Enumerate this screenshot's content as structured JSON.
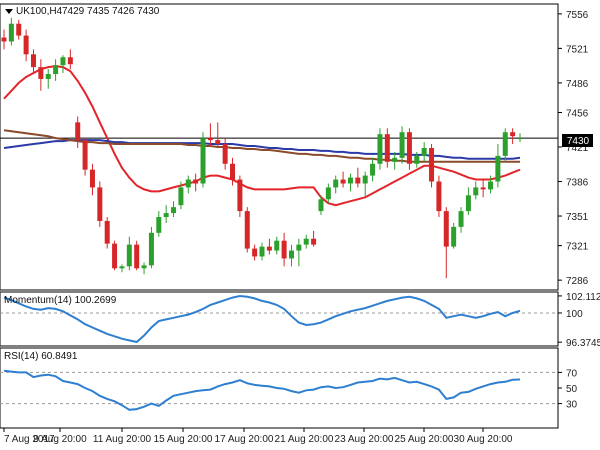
{
  "colors": {
    "bull": "#2ca02c",
    "bear": "#d62728",
    "sma_fast": "#e4242b",
    "sma_mid": "#2c3aa8",
    "sma_slow": "#8b4a2a",
    "indicator_line": "#2f7fd0",
    "grid": "#9a9a9a",
    "axis": "#000000",
    "price_tag_bg": "#000000",
    "price_tag_text": "#ffffff"
  },
  "chart_data": [
    {
      "type": "candlestick",
      "title": "UK100,H4",
      "ohlc_label": "7429 7435 7426 7430",
      "last_price": "7430",
      "yticks": [
        "7556",
        "7521",
        "7486",
        "7456",
        "7421",
        "7386",
        "7351",
        "7321",
        "7286"
      ],
      "ylim": [
        7276,
        7566
      ],
      "xticks": [
        "7 Aug 2017",
        "9 Aug 20:00",
        "11 Aug 20:00",
        "15 Aug 20:00",
        "17 Aug 20:00",
        "21 Aug 20:00",
        "23 Aug 20:00",
        "25 Aug 20:00",
        "30 Aug 20:00"
      ],
      "grid": false,
      "candles": [
        [
          7532,
          7540,
          7520,
          7528
        ],
        [
          7528,
          7552,
          7524,
          7546
        ],
        [
          7546,
          7550,
          7530,
          7534
        ],
        [
          7534,
          7540,
          7508,
          7515
        ],
        [
          7515,
          7520,
          7496,
          7502
        ],
        [
          7502,
          7510,
          7478,
          7490
        ],
        [
          7490,
          7500,
          7480,
          7495
        ],
        [
          7495,
          7510,
          7488,
          7504
        ],
        [
          7504,
          7514,
          7496,
          7512
        ],
        [
          7512,
          7520,
          7500,
          7505
        ],
        [
          7446,
          7452,
          7420,
          7428
        ],
        [
          7428,
          7430,
          7392,
          7398
        ],
        [
          7398,
          7404,
          7372,
          7380
        ],
        [
          7380,
          7386,
          7340,
          7346
        ],
        [
          7346,
          7350,
          7318,
          7323
        ],
        [
          7323,
          7326,
          7296,
          7298
        ],
        [
          7298,
          7302,
          7294,
          7300
        ],
        [
          7300,
          7330,
          7296,
          7322
        ],
        [
          7322,
          7326,
          7296,
          7298
        ],
        [
          7298,
          7304,
          7292,
          7301
        ],
        [
          7301,
          7340,
          7298,
          7334
        ],
        [
          7334,
          7356,
          7330,
          7350
        ],
        [
          7350,
          7362,
          7344,
          7354
        ],
        [
          7354,
          7366,
          7350,
          7360
        ],
        [
          7362,
          7386,
          7358,
          7380
        ],
        [
          7380,
          7392,
          7374,
          7388
        ],
        [
          7388,
          7394,
          7376,
          7384
        ],
        [
          7384,
          7436,
          7380,
          7430
        ],
        [
          7430,
          7445,
          7422,
          7428
        ],
        [
          7428,
          7446,
          7420,
          7424
        ],
        [
          7424,
          7430,
          7398,
          7404
        ],
        [
          7404,
          7410,
          7382,
          7388
        ],
        [
          7388,
          7392,
          7350,
          7356
        ],
        [
          7356,
          7360,
          7314,
          7318
        ],
        [
          7318,
          7322,
          7306,
          7310
        ],
        [
          7310,
          7324,
          7306,
          7320
        ],
        [
          7320,
          7328,
          7312,
          7316
        ],
        [
          7316,
          7330,
          7312,
          7326
        ],
        [
          7326,
          7334,
          7300,
          7308
        ],
        [
          7308,
          7322,
          7300,
          7316
        ],
        [
          7316,
          7328,
          7300,
          7322
        ],
        [
          7322,
          7332,
          7318,
          7328
        ],
        [
          7328,
          7336,
          7320,
          7322
        ],
        [
          7356,
          7372,
          7352,
          7368
        ],
        [
          7368,
          7384,
          7364,
          7380
        ],
        [
          7380,
          7392,
          7374,
          7388
        ],
        [
          7388,
          7396,
          7380,
          7384
        ],
        [
          7384,
          7394,
          7376,
          7390
        ],
        [
          7390,
          7400,
          7380,
          7384
        ],
        [
          7384,
          7396,
          7370,
          7392
        ],
        [
          7392,
          7410,
          7386,
          7404
        ],
        [
          7404,
          7440,
          7398,
          7434
        ],
        [
          7434,
          7440,
          7400,
          7406
        ],
        [
          7406,
          7416,
          7398,
          7410
        ],
        [
          7410,
          7442,
          7404,
          7436
        ],
        [
          7436,
          7440,
          7398,
          7404
        ],
        [
          7404,
          7416,
          7400,
          7412
        ],
        [
          7412,
          7426,
          7406,
          7420
        ],
        [
          7420,
          7424,
          7380,
          7386
        ],
        [
          7386,
          7392,
          7350,
          7356
        ],
        [
          7356,
          7360,
          7288,
          7320
        ],
        [
          7320,
          7344,
          7318,
          7340
        ],
        [
          7340,
          7360,
          7334,
          7356
        ],
        [
          7356,
          7380,
          7352,
          7372
        ],
        [
          7372,
          7386,
          7368,
          7380
        ],
        [
          7380,
          7388,
          7370,
          7378
        ],
        [
          7378,
          7392,
          7374,
          7386
        ],
        [
          7386,
          7424,
          7380,
          7412
        ],
        [
          7412,
          7440,
          7406,
          7436
        ],
        [
          7436,
          7440,
          7424,
          7432
        ],
        [
          7429,
          7435,
          7426,
          7430
        ]
      ],
      "series": [
        {
          "values": [
            7470,
            7478,
            7486,
            7492,
            7496,
            7500,
            7502,
            7503,
            7502,
            7498,
            7488,
            7476,
            7462,
            7446,
            7430,
            7414,
            7400,
            7390,
            7382,
            7378,
            7376,
            7376,
            7378,
            7380,
            7382,
            7384,
            7386,
            7390,
            7392,
            7392,
            7390,
            7388,
            7384,
            7380,
            7378,
            7378,
            7378,
            7378,
            7378,
            7379,
            7380,
            7380,
            7380,
            7370,
            7364,
            7362,
            7364,
            7366,
            7368,
            7370,
            7374,
            7378,
            7382,
            7386,
            7390,
            7394,
            7398,
            7402,
            7402,
            7400,
            7398,
            7396,
            7393,
            7390,
            7388,
            7388,
            7388,
            7390,
            7392,
            7395,
            7398
          ]
        },
        {
          "values": [
            7420,
            7421,
            7422,
            7423,
            7424,
            7425,
            7426,
            7427,
            7427,
            7428,
            7428,
            7428,
            7428,
            7428,
            7427,
            7426,
            7426,
            7425,
            7425,
            7425,
            7425,
            7425,
            7425,
            7425,
            7425,
            7425,
            7425,
            7425,
            7424,
            7424,
            7424,
            7424,
            7423,
            7422,
            7422,
            7421,
            7420,
            7420,
            7419,
            7419,
            7418,
            7418,
            7418,
            7417,
            7417,
            7416,
            7416,
            7415,
            7415,
            7414,
            7414,
            7414,
            7414,
            7414,
            7414,
            7413,
            7413,
            7413,
            7412,
            7412,
            7411,
            7410,
            7410,
            7409,
            7409,
            7409,
            7409,
            7409,
            7409,
            7409,
            7410
          ]
        },
        {
          "values": [
            7438,
            7437,
            7436,
            7435,
            7434,
            7433,
            7432,
            7430,
            7429,
            7428,
            7427,
            7426,
            7426,
            7425,
            7425,
            7424,
            7424,
            7424,
            7424,
            7424,
            7424,
            7424,
            7424,
            7424,
            7424,
            7423,
            7423,
            7422,
            7422,
            7421,
            7421,
            7420,
            7420,
            7419,
            7419,
            7418,
            7418,
            7417,
            7416,
            7415,
            7414,
            7414,
            7413,
            7413,
            7412,
            7412,
            7411,
            7410,
            7410,
            7409,
            7409,
            7408,
            7408,
            7407,
            7407,
            7406,
            7406,
            7406,
            7406,
            7406,
            7406,
            7406,
            7406,
            7406,
            7406,
            7406,
            7406,
            7406,
            7406,
            7406,
            7406
          ]
        }
      ]
    },
    {
      "type": "line",
      "title": "Momentum(14) 100.2699",
      "yticks": [
        "102.1129",
        "100",
        "96.3745"
      ],
      "ylim": [
        95.9,
        102.6
      ],
      "reference_line": 100,
      "series": [
        {
          "values": [
            101.9,
            101.6,
            101.2,
            100.8,
            100.5,
            100.4,
            100.6,
            100.5,
            100.2,
            99.7,
            99.2,
            98.6,
            98.2,
            97.8,
            97.4,
            97.1,
            96.8,
            96.6,
            96.4,
            97.2,
            98.2,
            99.0,
            99.2,
            99.4,
            99.6,
            99.8,
            100.1,
            100.5,
            101.0,
            101.3,
            101.6,
            101.9,
            102.1,
            102.0,
            101.8,
            101.5,
            101.3,
            101.0,
            100.5,
            99.6,
            98.8,
            98.5,
            98.6,
            98.8,
            99.2,
            99.6,
            99.9,
            100.2,
            100.4,
            100.6,
            100.9,
            101.2,
            101.5,
            101.7,
            101.9,
            102.0,
            101.8,
            101.5,
            101.0,
            100.5,
            99.4,
            99.6,
            99.8,
            99.6,
            99.4,
            99.6,
            99.9,
            100.1,
            99.6,
            100.0,
            100.27
          ]
        }
      ]
    },
    {
      "type": "line",
      "title": "RSI(14) 60.8491",
      "yticks": [
        "70",
        "50",
        "30"
      ],
      "ylim": [
        0,
        100
      ],
      "reference_lines": [
        70,
        30
      ],
      "series": [
        {
          "values": [
            72,
            71,
            70,
            70,
            64,
            66,
            67,
            65,
            59,
            57,
            55,
            50,
            46,
            40,
            36,
            33,
            28,
            22,
            23,
            26,
            30,
            27,
            34,
            40,
            42,
            44,
            46,
            47,
            48,
            52,
            55,
            57,
            60,
            56,
            54,
            53,
            52,
            50,
            49,
            46,
            44,
            47,
            48,
            51,
            52,
            50,
            51,
            54,
            57,
            58,
            59,
            62,
            61,
            63,
            60,
            57,
            58,
            55,
            52,
            48,
            36,
            38,
            44,
            45,
            49,
            52,
            55,
            57,
            58,
            60.5,
            60.85
          ]
        }
      ]
    }
  ]
}
